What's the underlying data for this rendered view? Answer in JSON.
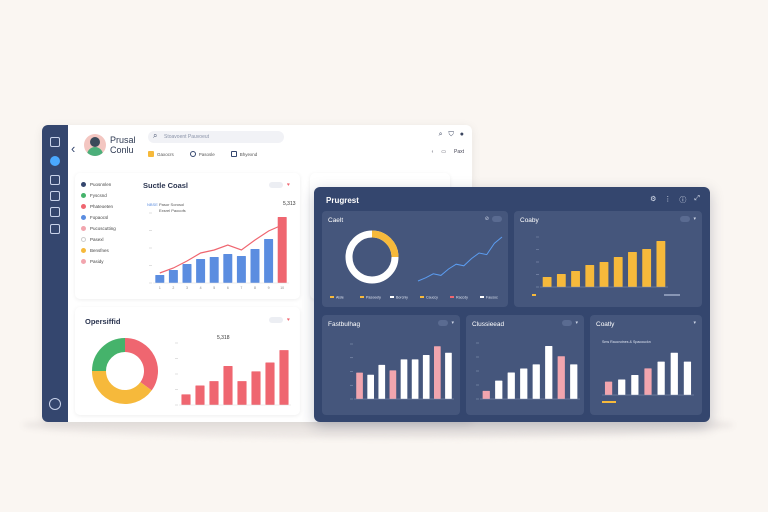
{
  "colors": {
    "navy": "#34466e",
    "blue": "#5b8de0",
    "red": "#ef6670",
    "yellow": "#f6b93b",
    "pink": "#f2a5ae",
    "green": "#45b36b",
    "white": "#ffffff"
  },
  "header": {
    "user_name": "Prusal Conlu",
    "search_placeholder": "Stoavoent Pauvoeut",
    "tabs": [
      {
        "label": "Gaxocrs",
        "icon": "calendar-icon"
      },
      {
        "label": "Pasosle",
        "icon": "user-icon"
      },
      {
        "label": "Bhyexnd",
        "icon": "document-icon"
      }
    ],
    "nav_label": "Paxt"
  },
  "sidebar": {
    "icons": [
      "app-icon",
      "home-icon",
      "bag-icon",
      "send-icon",
      "cloud-icon",
      "grid-icon",
      "settings-icon"
    ]
  },
  "light": {
    "legend": [
      {
        "label": "Puosnnlen",
        "color": "#34466e"
      },
      {
        "label": "Fyscsnd",
        "color": "#45b36b"
      },
      {
        "label": "Phateoeten",
        "color": "#ef6670"
      },
      {
        "label": "Fopaocsl",
        "color": "#5b8de0"
      },
      {
        "label": "Pucoscutting",
        "color": "#f2a5ae"
      },
      {
        "label": "Pasexl",
        "color": "#ffffff"
      },
      {
        "label": "Bensfnes",
        "color": "#f6b93b"
      },
      {
        "label": "Pasidy",
        "color": "#f2a5ae"
      }
    ],
    "bar_chart_title": "Suctle Coasl",
    "bar_chart_value": "5,313",
    "bar_chart_legend": [
      "NBSE",
      "Pasor Sorosol",
      "Exsrel Paocofs"
    ],
    "donut_title": "Opersiffid",
    "donut_value": "5,318"
  },
  "dark": {
    "title": "Prugrest",
    "cards": {
      "gauge": {
        "title": "Caelt",
        "legend": [
          "Aisle",
          "Pasoeety",
          "Borcnly",
          "Cauccy",
          "Raccdy",
          "Fausoc"
        ]
      },
      "yellow": {
        "title": "Coaby"
      },
      "left": {
        "title": "Fastbulhag"
      },
      "mid": {
        "title": "Clussieead"
      },
      "right": {
        "title": "Coatly",
        "legend": "Sms Raucrutnes & Spacouckn"
      }
    }
  },
  "chart_data": [
    {
      "type": "bar",
      "title": "Suctle Coasl",
      "categories": [
        "1",
        "2",
        "3",
        "4",
        "5",
        "6",
        "7",
        "8",
        "9",
        "10"
      ],
      "series": [
        {
          "name": "Pasor Sorosol",
          "values": [
            8,
            13,
            19,
            24,
            26,
            29,
            27,
            34,
            44,
            66
          ]
        },
        {
          "name": "Exsrel Paocofs",
          "values": [
            10,
            15,
            22,
            30,
            33,
            38,
            33,
            43,
            52,
            58
          ]
        }
      ],
      "ylim": [
        0,
        70
      ]
    },
    {
      "type": "pie",
      "title": "Opersiffid",
      "categories": [
        "Red",
        "Yellow",
        "Green"
      ],
      "values": [
        35,
        40,
        25
      ]
    },
    {
      "type": "bar",
      "title": "",
      "categories": [
        "1",
        "2",
        "3",
        "4",
        "5",
        "6",
        "7",
        "8"
      ],
      "values": [
        12,
        22,
        27,
        44,
        27,
        38,
        48,
        62
      ],
      "ylim": [
        0,
        70
      ]
    },
    {
      "type": "line",
      "title": "Caelt",
      "x": [
        1,
        2,
        3,
        4,
        5,
        6,
        7,
        8,
        9,
        10,
        11,
        12
      ],
      "values": [
        5,
        9,
        14,
        12,
        20,
        26,
        24,
        33,
        40,
        38,
        52,
        60
      ],
      "ylim": [
        0,
        70
      ]
    },
    {
      "type": "bar",
      "title": "Coaby",
      "categories": [
        "1",
        "2",
        "3",
        "4",
        "5",
        "6",
        "7",
        "8",
        "9"
      ],
      "values": [
        10,
        13,
        16,
        22,
        25,
        30,
        35,
        38,
        46
      ],
      "ylim": [
        0,
        50
      ]
    },
    {
      "type": "bar",
      "title": "Fastbulhag",
      "categories": [
        "1",
        "2",
        "3",
        "4",
        "5",
        "6",
        "7",
        "8",
        "9"
      ],
      "values": [
        24,
        22,
        31,
        26,
        36,
        36,
        40,
        48,
        42
      ],
      "ylim": [
        0,
        50
      ]
    },
    {
      "type": "bar",
      "title": "Clussieead",
      "categories": [
        "1",
        "2",
        "3",
        "4",
        "5",
        "6",
        "7",
        "8"
      ],
      "values": [
        8,
        18,
        26,
        30,
        34,
        52,
        42,
        34
      ],
      "ylim": [
        0,
        55
      ]
    },
    {
      "type": "bar",
      "title": "Coatly",
      "categories": [
        "1",
        "2",
        "3",
        "4",
        "5",
        "6",
        "7"
      ],
      "values": [
        12,
        14,
        18,
        24,
        30,
        38,
        30
      ],
      "ylim": [
        0,
        45
      ]
    }
  ]
}
